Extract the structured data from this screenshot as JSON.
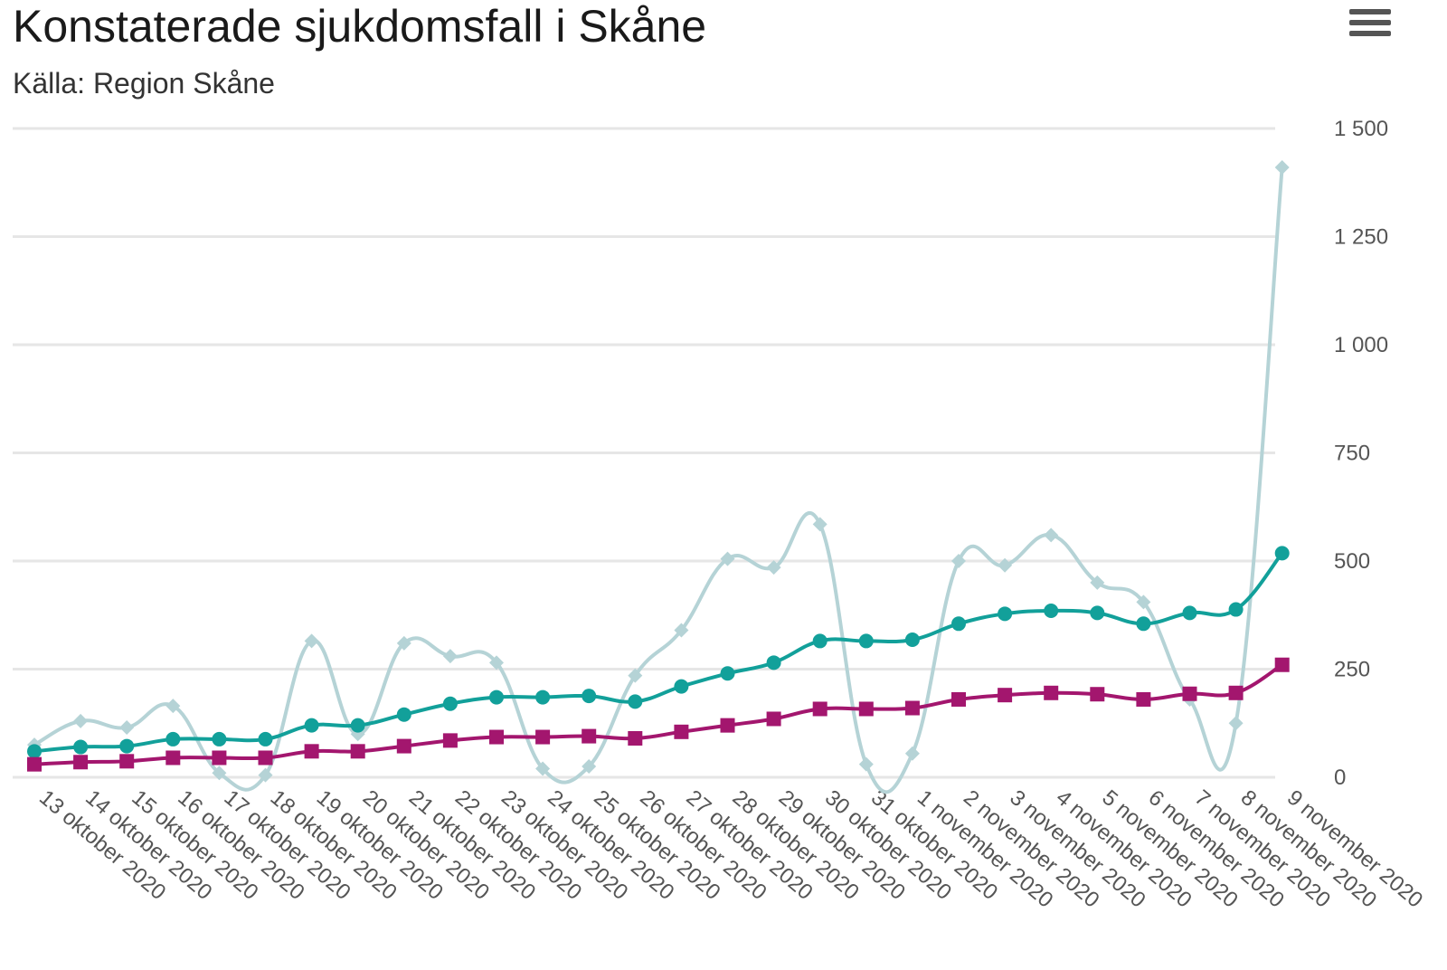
{
  "header": {
    "title": "Konstaterade sjukdomsfall i Skåne",
    "subtitle": "Källa: Region Skåne"
  },
  "icons": {
    "menu": "hamburger-menu-icon"
  },
  "chart_data": {
    "type": "line",
    "title": "Konstaterade sjukdomsfall i Skåne",
    "subtitle": "Källa: Region Skåne",
    "xlabel": "",
    "ylabel": "",
    "ylim": [
      0,
      1500
    ],
    "yticks": [
      0,
      250,
      500,
      750,
      1000,
      1250,
      1500
    ],
    "ytick_labels": [
      "0",
      "250",
      "500",
      "750",
      "1 000",
      "1 250",
      "1 500"
    ],
    "y_axis_position": "right",
    "grid": true,
    "categories": [
      "13 oktober 2020",
      "14 oktober 2020",
      "15 oktober 2020",
      "16 oktober 2020",
      "17 oktober 2020",
      "18 oktober 2020",
      "19 oktober 2020",
      "20 oktober 2020",
      "21 oktober 2020",
      "22 oktober 2020",
      "23 oktober 2020",
      "24 oktober 2020",
      "25 oktober 2020",
      "26 oktober 2020",
      "27 oktober 2020",
      "28 oktober 2020",
      "29 oktober 2020",
      "30 oktober 2020",
      "31 oktober 2020",
      "1 november 2020",
      "2 november 2020",
      "3 november 2020",
      "4 november 2020",
      "5 november 2020",
      "6 november 2020",
      "7 november 2020",
      "8 november 2020",
      "9 november 2020"
    ],
    "series": [
      {
        "color": "#b5d3d6",
        "marker": "diamond",
        "values": [
          75,
          130,
          115,
          165,
          10,
          5,
          315,
          100,
          310,
          280,
          265,
          20,
          25,
          235,
          340,
          505,
          485,
          585,
          30,
          55,
          500,
          490,
          560,
          450,
          405,
          180,
          125,
          1410
        ]
      },
      {
        "color": "#12a09a",
        "marker": "circle",
        "values": [
          60,
          70,
          72,
          88,
          88,
          88,
          120,
          120,
          145,
          170,
          185,
          185,
          188,
          175,
          210,
          240,
          265,
          315,
          315,
          318,
          355,
          378,
          385,
          380,
          355,
          380,
          388,
          518
        ]
      },
      {
        "color": "#a3166e",
        "marker": "square",
        "values": [
          30,
          35,
          37,
          45,
          45,
          45,
          60,
          60,
          72,
          85,
          93,
          93,
          95,
          90,
          105,
          120,
          135,
          158,
          158,
          160,
          180,
          190,
          195,
          192,
          180,
          193,
          195,
          260
        ]
      }
    ]
  }
}
